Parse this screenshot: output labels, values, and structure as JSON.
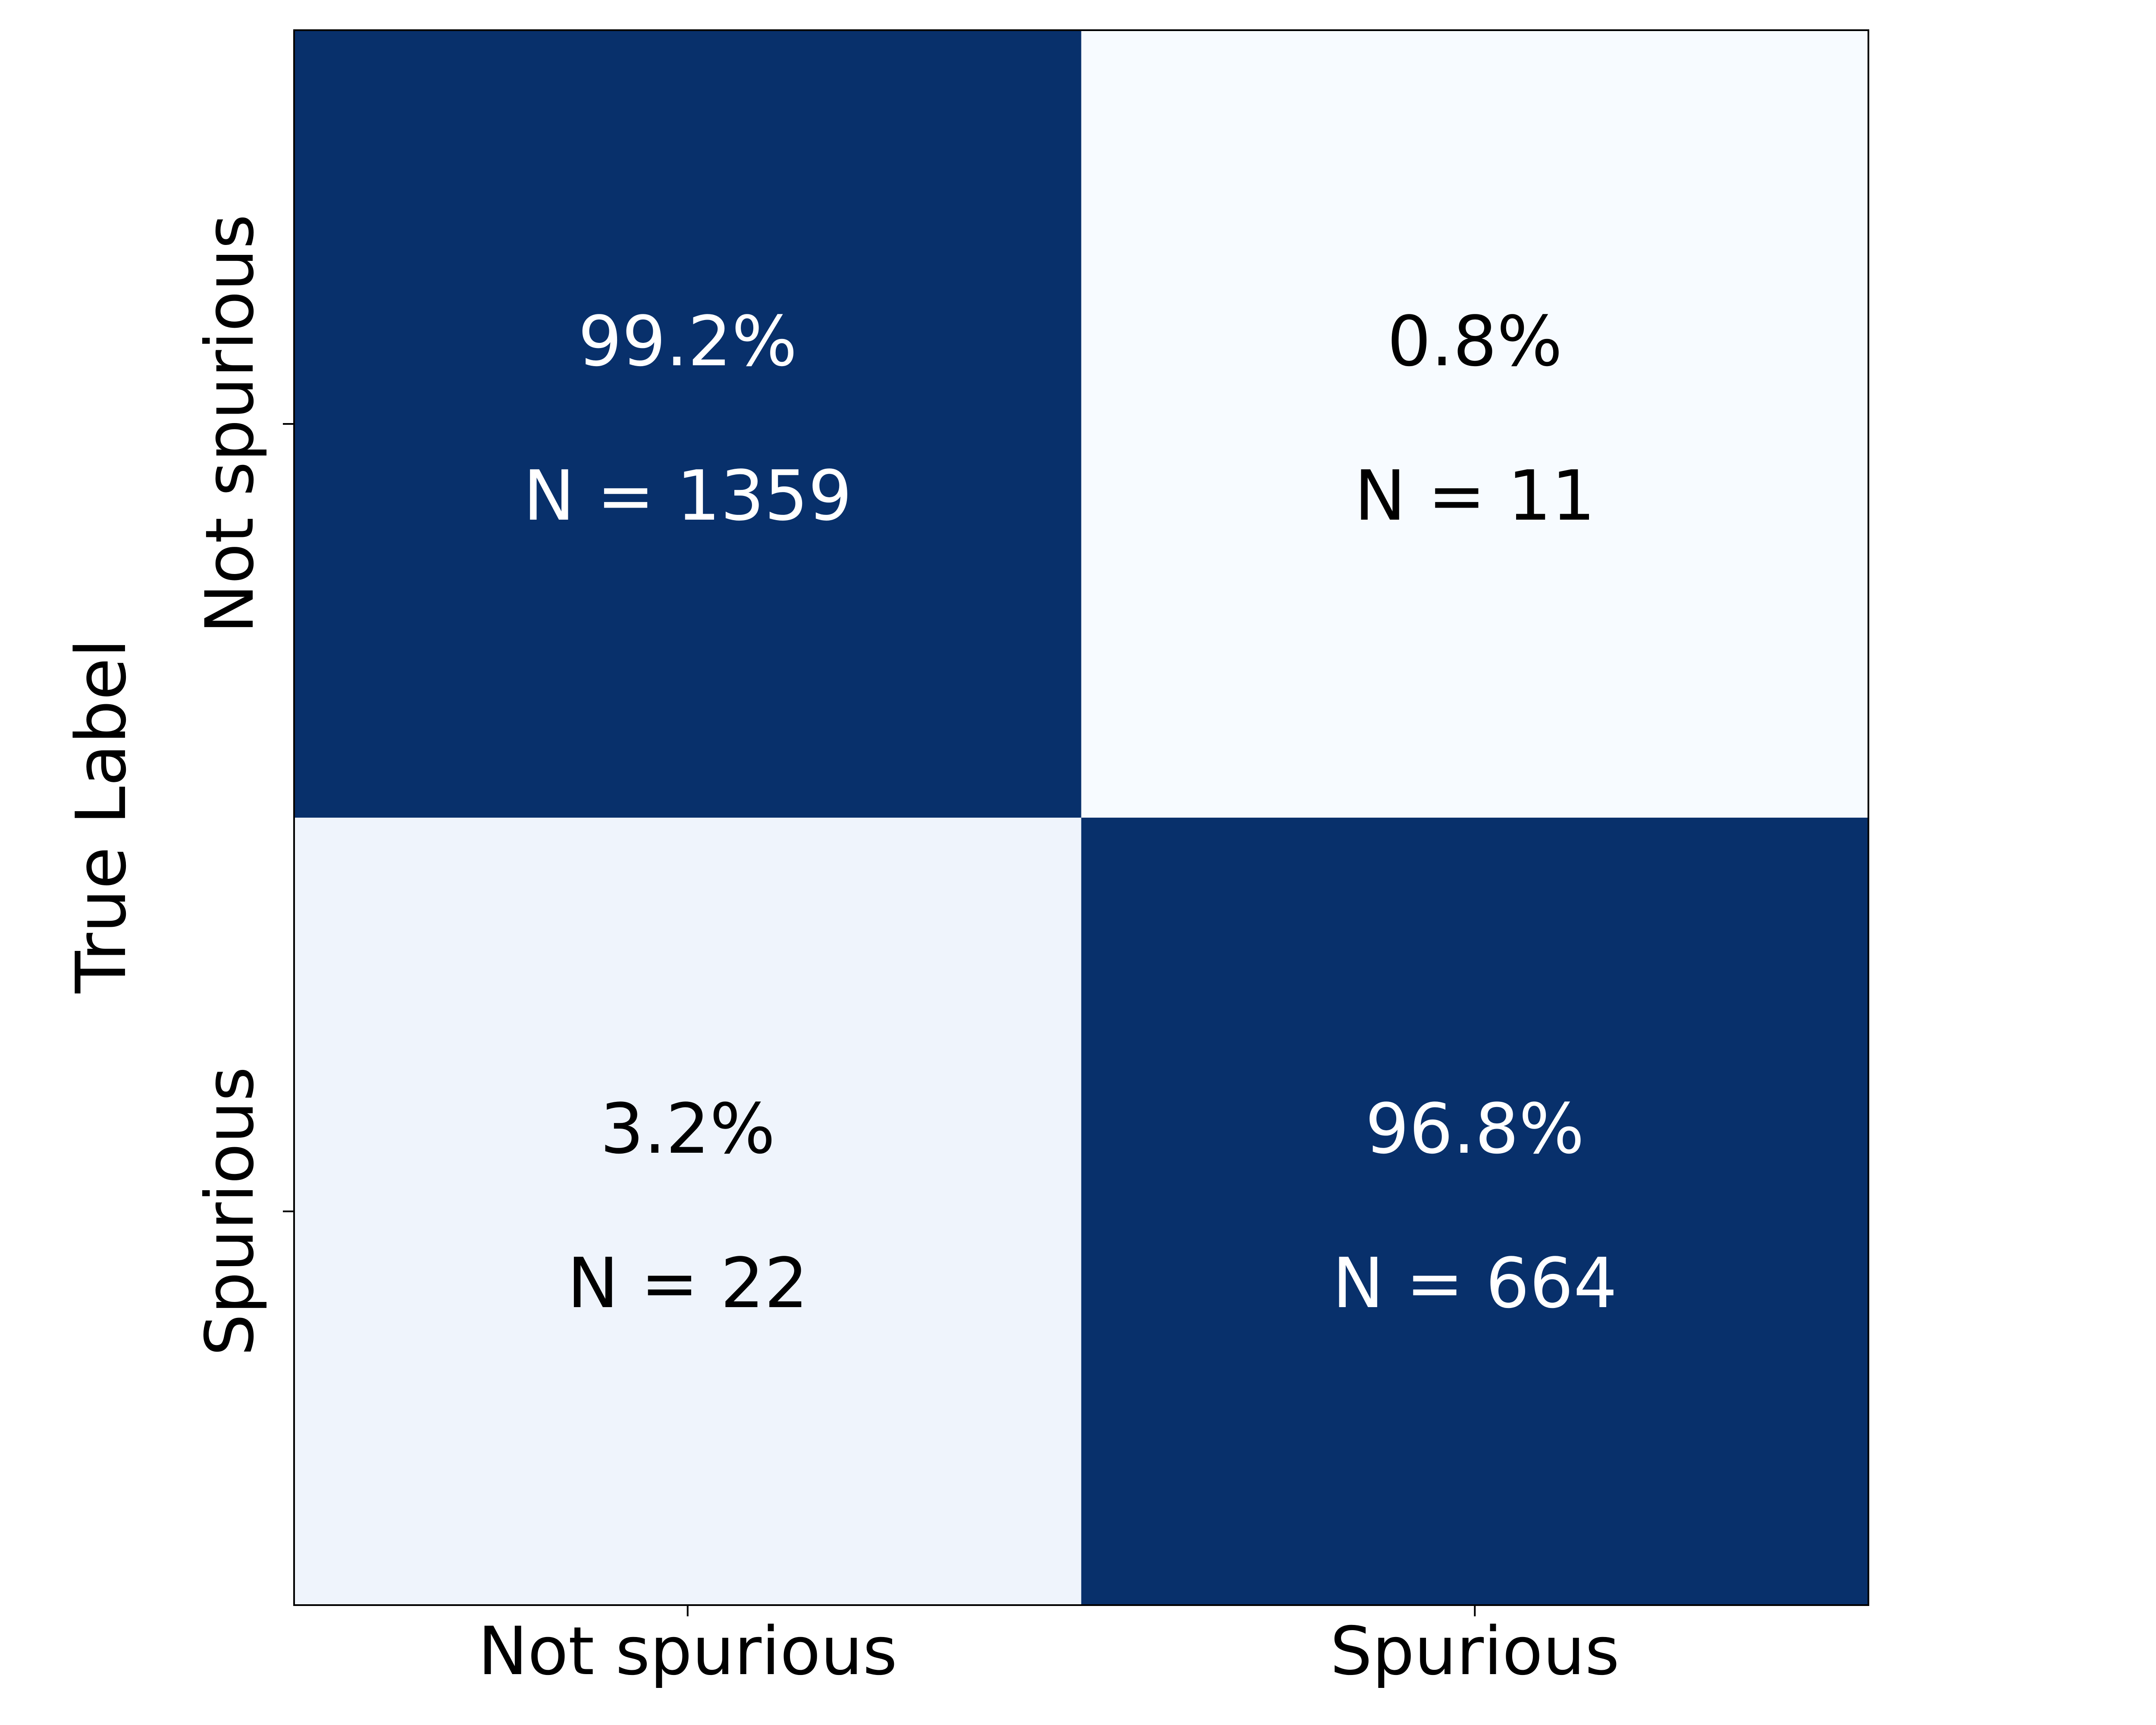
{
  "chart_data": {
    "type": "heatmap",
    "y_label": "True Label",
    "row_labels": [
      "Not spurious",
      "Spurious"
    ],
    "column_labels": [
      "Not spurious",
      "Spurious"
    ],
    "values": [
      [
        99.2,
        0.8
      ],
      [
        3.2,
        96.8
      ]
    ],
    "value_labels": [
      [
        "99.2%",
        "0.8%"
      ],
      [
        "3.2%",
        "96.8%"
      ]
    ],
    "counts": [
      [
        1359,
        11
      ],
      [
        22,
        664
      ]
    ],
    "count_labels": [
      [
        "N = 1359",
        "N = 11"
      ],
      [
        "N = 22",
        "N = 664"
      ]
    ],
    "cell_colors": [
      [
        "#08306b",
        "#f7fbff"
      ],
      [
        "#eff4fc",
        "#08306b"
      ]
    ],
    "text_colors": [
      [
        "#ffffff",
        "#000000"
      ],
      [
        "#000000",
        "#ffffff"
      ]
    ]
  }
}
